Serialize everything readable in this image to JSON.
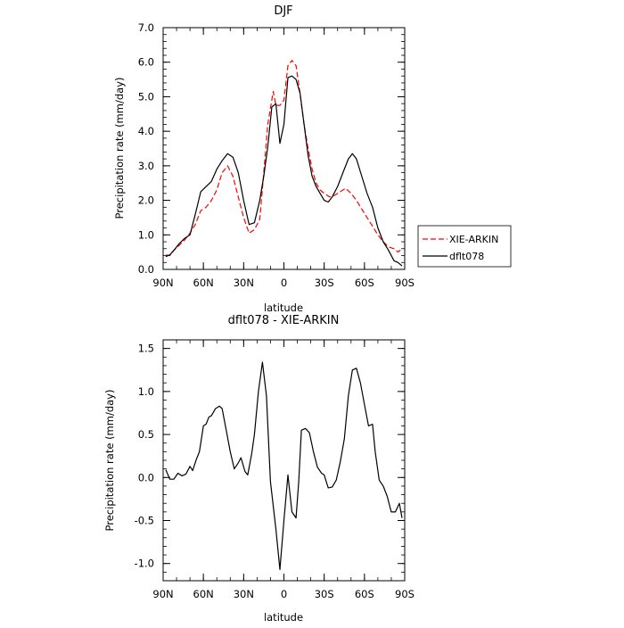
{
  "chart_data": [
    {
      "type": "line",
      "title": "DJF",
      "xlabel": "latitude",
      "ylabel": "Precipitation rate (mm/day)",
      "xlim": [
        -90,
        90
      ],
      "ylim": [
        0,
        7
      ],
      "x_ticks": [
        -90,
        -60,
        -30,
        0,
        30,
        60,
        90
      ],
      "x_tick_labels": [
        "90N",
        "60N",
        "30N",
        "0",
        "30S",
        "60S",
        "90S"
      ],
      "y_ticks": [
        0,
        1,
        2,
        3,
        4,
        5,
        6,
        7
      ],
      "y_tick_labels": [
        "0.0",
        "1.0",
        "2.0",
        "3.0",
        "4.0",
        "5.0",
        "6.0",
        "7.0"
      ],
      "legend_position": "outside-right",
      "series": [
        {
          "name": "XIE-ARKIN",
          "color": "#ff0000",
          "style": "dashed",
          "points": [
            [
              -88,
              0.42
            ],
            [
              -85,
              0.4
            ],
            [
              -82,
              0.55
            ],
            [
              -78,
              0.7
            ],
            [
              -74,
              0.85
            ],
            [
              -70,
              1.05
            ],
            [
              -66,
              1.3
            ],
            [
              -62,
              1.7
            ],
            [
              -58,
              1.8
            ],
            [
              -54,
              2.0
            ],
            [
              -50,
              2.3
            ],
            [
              -46,
              2.8
            ],
            [
              -42,
              3.0
            ],
            [
              -38,
              2.7
            ],
            [
              -34,
              2.1
            ],
            [
              -30,
              1.5
            ],
            [
              -26,
              1.05
            ],
            [
              -22,
              1.15
            ],
            [
              -18,
              1.45
            ],
            [
              -15,
              2.8
            ],
            [
              -12,
              4.2
            ],
            [
              -8,
              5.15
            ],
            [
              -6,
              4.75
            ],
            [
              -3,
              4.75
            ],
            [
              0,
              4.9
            ],
            [
              3,
              5.9
            ],
            [
              6,
              6.05
            ],
            [
              9,
              5.9
            ],
            [
              12,
              5.1
            ],
            [
              15,
              4.2
            ],
            [
              18,
              3.5
            ],
            [
              21,
              2.9
            ],
            [
              24,
              2.5
            ],
            [
              27,
              2.3
            ],
            [
              30,
              2.2
            ],
            [
              34,
              2.1
            ],
            [
              38,
              2.15
            ],
            [
              42,
              2.25
            ],
            [
              46,
              2.35
            ],
            [
              50,
              2.2
            ],
            [
              54,
              2.0
            ],
            [
              58,
              1.75
            ],
            [
              62,
              1.5
            ],
            [
              66,
              1.25
            ],
            [
              70,
              1.0
            ],
            [
              74,
              0.8
            ],
            [
              78,
              0.65
            ],
            [
              82,
              0.6
            ],
            [
              85,
              0.5
            ],
            [
              88,
              0.6
            ]
          ]
        },
        {
          "name": "dflt078",
          "color": "#000000",
          "style": "solid",
          "points": [
            [
              -88,
              0.37
            ],
            [
              -85,
              0.42
            ],
            [
              -82,
              0.55
            ],
            [
              -78,
              0.75
            ],
            [
              -74,
              0.9
            ],
            [
              -70,
              1.0
            ],
            [
              -66,
              1.6
            ],
            [
              -62,
              2.25
            ],
            [
              -58,
              2.4
            ],
            [
              -54,
              2.55
            ],
            [
              -50,
              2.9
            ],
            [
              -46,
              3.15
            ],
            [
              -42,
              3.35
            ],
            [
              -38,
              3.25
            ],
            [
              -34,
              2.8
            ],
            [
              -30,
              2.0
            ],
            [
              -26,
              1.3
            ],
            [
              -22,
              1.35
            ],
            [
              -18,
              2.0
            ],
            [
              -15,
              2.7
            ],
            [
              -12,
              3.55
            ],
            [
              -9,
              4.7
            ],
            [
              -6,
              4.8
            ],
            [
              -3,
              3.65
            ],
            [
              0,
              4.2
            ],
            [
              3,
              5.55
            ],
            [
              6,
              5.6
            ],
            [
              9,
              5.5
            ],
            [
              12,
              5.1
            ],
            [
              15,
              4.2
            ],
            [
              18,
              3.3
            ],
            [
              21,
              2.7
            ],
            [
              24,
              2.4
            ],
            [
              27,
              2.2
            ],
            [
              30,
              2.0
            ],
            [
              33,
              1.95
            ],
            [
              36,
              2.1
            ],
            [
              40,
              2.4
            ],
            [
              44,
              2.8
            ],
            [
              48,
              3.2
            ],
            [
              51,
              3.35
            ],
            [
              54,
              3.2
            ],
            [
              58,
              2.7
            ],
            [
              62,
              2.2
            ],
            [
              66,
              1.8
            ],
            [
              70,
              1.2
            ],
            [
              74,
              0.8
            ],
            [
              78,
              0.55
            ],
            [
              82,
              0.25
            ],
            [
              85,
              0.2
            ],
            [
              88,
              0.1
            ]
          ]
        }
      ]
    },
    {
      "type": "line",
      "title": "dflt078 - XIE-ARKIN",
      "xlabel": "latitude",
      "ylabel": "Precipitation rate (mm/day)",
      "xlim": [
        -90,
        90
      ],
      "ylim": [
        -1.2,
        1.6
      ],
      "x_ticks": [
        -90,
        -60,
        -30,
        0,
        30,
        60,
        90
      ],
      "x_tick_labels": [
        "90N",
        "60N",
        "30N",
        "0",
        "30S",
        "60S",
        "90S"
      ],
      "y_ticks": [
        -1.0,
        -0.5,
        0.0,
        0.5,
        1.0,
        1.5
      ],
      "y_tick_labels": [
        "-1.0",
        "-0.5",
        "0.0",
        "0.5",
        "1.0",
        "1.5"
      ],
      "series": [
        {
          "color": "#000000",
          "style": "solid",
          "points": [
            [
              -88,
              0.09
            ],
            [
              -85,
              -0.02
            ],
            [
              -82,
              -0.02
            ],
            [
              -79,
              0.05
            ],
            [
              -76,
              0.02
            ],
            [
              -73,
              0.04
            ],
            [
              -70,
              0.13
            ],
            [
              -68,
              0.08
            ],
            [
              -65,
              0.22
            ],
            [
              -63,
              0.3
            ],
            [
              -60,
              0.6
            ],
            [
              -58,
              0.62
            ],
            [
              -56,
              0.7
            ],
            [
              -54,
              0.72
            ],
            [
              -51,
              0.8
            ],
            [
              -48,
              0.83
            ],
            [
              -46,
              0.8
            ],
            [
              -43,
              0.55
            ],
            [
              -40,
              0.3
            ],
            [
              -37,
              0.1
            ],
            [
              -34,
              0.17
            ],
            [
              -32,
              0.23
            ],
            [
              -29,
              0.07
            ],
            [
              -27,
              0.03
            ],
            [
              -24,
              0.28
            ],
            [
              -22,
              0.5
            ],
            [
              -19,
              1.0
            ],
            [
              -16,
              1.34
            ],
            [
              -13,
              0.95
            ],
            [
              -10,
              -0.05
            ],
            [
              -6,
              -0.6
            ],
            [
              -3,
              -1.07
            ],
            [
              0,
              -0.5
            ],
            [
              3,
              0.03
            ],
            [
              6,
              -0.4
            ],
            [
              9,
              -0.47
            ],
            [
              11,
              -0.05
            ],
            [
              13,
              0.55
            ],
            [
              16,
              0.57
            ],
            [
              19,
              0.52
            ],
            [
              22,
              0.3
            ],
            [
              25,
              0.12
            ],
            [
              28,
              0.05
            ],
            [
              30,
              0.03
            ],
            [
              33,
              -0.12
            ],
            [
              36,
              -0.11
            ],
            [
              39,
              -0.03
            ],
            [
              42,
              0.18
            ],
            [
              45,
              0.45
            ],
            [
              48,
              0.95
            ],
            [
              51,
              1.25
            ],
            [
              54,
              1.27
            ],
            [
              57,
              1.1
            ],
            [
              60,
              0.85
            ],
            [
              63,
              0.6
            ],
            [
              66,
              0.62
            ],
            [
              68,
              0.3
            ],
            [
              71,
              -0.03
            ],
            [
              74,
              -0.1
            ],
            [
              77,
              -0.22
            ],
            [
              80,
              -0.4
            ],
            [
              83,
              -0.4
            ],
            [
              86,
              -0.3
            ],
            [
              88,
              -0.47
            ]
          ]
        }
      ]
    }
  ]
}
